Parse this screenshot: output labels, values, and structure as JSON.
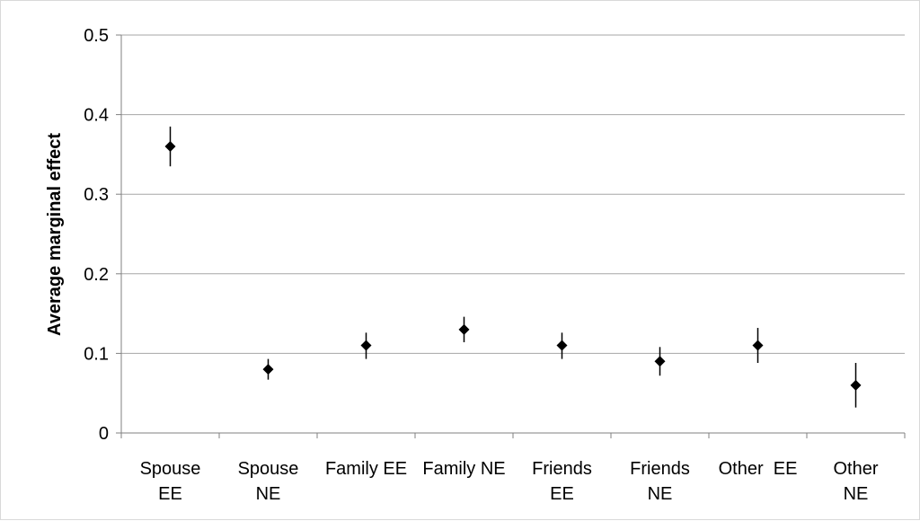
{
  "chart_data": {
    "type": "scatter",
    "title": "",
    "ylabel": "Average marginal effect",
    "xlabel": "",
    "ylim": [
      0,
      0.5
    ],
    "yticks": [
      "0",
      "0.1",
      "0.2",
      "0.3",
      "0.4",
      "0.5"
    ],
    "ytick_values": [
      0,
      0.1,
      0.2,
      0.3,
      0.4,
      0.5
    ],
    "grid": "horizontal",
    "legend": "none",
    "marker": "diamond",
    "marker_color": "#000000",
    "gridline_color": "#a6a6a6",
    "categories": [
      [
        "Spouse",
        "EE"
      ],
      [
        "Spouse",
        "NE"
      ],
      [
        "Family EE"
      ],
      [
        "Family NE"
      ],
      [
        "Friends",
        "EE"
      ],
      [
        "Friends",
        "NE"
      ],
      [
        "Other  EE"
      ],
      [
        "Other",
        "NE"
      ]
    ],
    "points": [
      {
        "y": 0.36,
        "low": 0.335,
        "high": 0.385
      },
      {
        "y": 0.08,
        "low": 0.067,
        "high": 0.093
      },
      {
        "y": 0.11,
        "low": 0.093,
        "high": 0.126
      },
      {
        "y": 0.13,
        "low": 0.114,
        "high": 0.146
      },
      {
        "y": 0.11,
        "low": 0.093,
        "high": 0.126
      },
      {
        "y": 0.09,
        "low": 0.072,
        "high": 0.108
      },
      {
        "y": 0.11,
        "low": 0.088,
        "high": 0.132
      },
      {
        "y": 0.06,
        "low": 0.032,
        "high": 0.088
      }
    ]
  }
}
